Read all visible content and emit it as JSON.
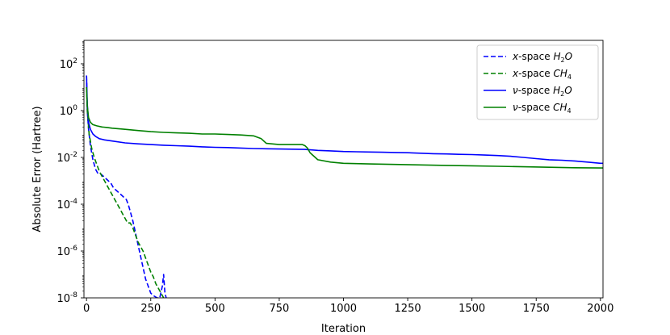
{
  "chart_data": {
    "type": "line",
    "xlabel": "Iteration",
    "ylabel": "Absolute Error (Hartree)",
    "xlim": [
      -10,
      2010
    ],
    "ylim_log10": [
      -8,
      3
    ],
    "y_scale": "log",
    "x_ticks": [
      0,
      250,
      500,
      750,
      1000,
      1250,
      1500,
      1750,
      2000
    ],
    "y_ticks_exp": [
      2,
      0,
      -2,
      -4,
      -6,
      -8
    ],
    "y_tick_base": "10",
    "legend": {
      "placement": "top-right",
      "entries": [
        {
          "prefix": "x",
          "text": "-space ",
          "sub_label": "H",
          "sub": "2",
          "tail": "O"
        },
        {
          "prefix": "x",
          "text": "-space ",
          "sub_label": "CH",
          "sub": "4",
          "tail": ""
        },
        {
          "prefix": "ν",
          "text": "-space ",
          "sub_label": "H",
          "sub": "2",
          "tail": "O"
        },
        {
          "prefix": "ν",
          "text": "-space ",
          "sub_label": "CH",
          "sub": "4",
          "tail": ""
        }
      ]
    },
    "series": [
      {
        "name": "x-space H2O",
        "color": "#0000ff",
        "dash": "dashed",
        "x": [
          0,
          3,
          8,
          15,
          25,
          35,
          45,
          55,
          65,
          75,
          85,
          95,
          105,
          115,
          125,
          135,
          145,
          155,
          162,
          170,
          180,
          190,
          200,
          210,
          220,
          230,
          240,
          250,
          260,
          275,
          285,
          295,
          300,
          305,
          310
        ],
        "y": [
          1.5,
          0.0,
          -0.8,
          -1.5,
          -2.1,
          -2.5,
          -2.7,
          -2.7,
          -2.8,
          -2.9,
          -3.0,
          -3.1,
          -3.3,
          -3.4,
          -3.5,
          -3.6,
          -3.7,
          -3.8,
          -4.0,
          -4.3,
          -4.7,
          -5.2,
          -5.7,
          -6.2,
          -6.7,
          -7.2,
          -7.5,
          -7.8,
          -7.9,
          -8.0,
          -8.0,
          -7.5,
          -7.0,
          -7.8,
          -8.0
        ]
      },
      {
        "name": "x-space CH4",
        "color": "#008000",
        "dash": "dashed",
        "x": [
          0,
          3,
          10,
          20,
          30,
          40,
          50,
          60,
          70,
          80,
          90,
          100,
          110,
          120,
          130,
          140,
          150,
          160,
          170,
          180,
          190,
          200,
          210,
          220,
          230,
          240,
          250,
          260,
          270,
          280,
          290,
          300
        ],
        "y": [
          1.0,
          0.0,
          -1.0,
          -1.6,
          -2.0,
          -2.3,
          -2.6,
          -2.8,
          -3.0,
          -3.2,
          -3.4,
          -3.6,
          -3.8,
          -4.0,
          -4.2,
          -4.4,
          -4.6,
          -4.8,
          -4.8,
          -5.0,
          -5.3,
          -5.6,
          -5.8,
          -6.0,
          -6.3,
          -6.6,
          -6.9,
          -7.1,
          -7.4,
          -7.6,
          -7.8,
          -8.0
        ]
      },
      {
        "name": "ν-space H2O",
        "color": "#0000ff",
        "dash": "solid",
        "x": [
          0,
          3,
          8,
          15,
          25,
          35,
          50,
          70,
          100,
          150,
          200,
          250,
          300,
          350,
          400,
          450,
          500,
          550,
          600,
          650,
          700,
          750,
          800,
          850,
          900,
          950,
          1000,
          1050,
          1100,
          1150,
          1200,
          1250,
          1300,
          1350,
          1400,
          1450,
          1500,
          1550,
          1600,
          1650,
          1700,
          1750,
          1800,
          1850,
          1900,
          1950,
          2000,
          2010
        ],
        "y": [
          1.5,
          0.3,
          -0.5,
          -0.8,
          -1.0,
          -1.1,
          -1.2,
          -1.25,
          -1.3,
          -1.38,
          -1.42,
          -1.45,
          -1.48,
          -1.5,
          -1.52,
          -1.55,
          -1.57,
          -1.58,
          -1.6,
          -1.62,
          -1.63,
          -1.64,
          -1.65,
          -1.66,
          -1.7,
          -1.72,
          -1.75,
          -1.76,
          -1.77,
          -1.78,
          -1.79,
          -1.8,
          -1.82,
          -1.84,
          -1.85,
          -1.87,
          -1.88,
          -1.9,
          -1.92,
          -1.95,
          -2.0,
          -2.05,
          -2.1,
          -2.12,
          -2.15,
          -2.2,
          -2.25,
          -2.25
        ]
      },
      {
        "name": "ν-space CH4",
        "color": "#008000",
        "dash": "solid",
        "x": [
          0,
          3,
          8,
          15,
          25,
          40,
          60,
          80,
          100,
          150,
          200,
          250,
          300,
          350,
          400,
          450,
          500,
          550,
          600,
          650,
          680,
          700,
          750,
          800,
          840,
          850,
          860,
          870,
          880,
          890,
          900,
          950,
          1000,
          1100,
          1200,
          1300,
          1400,
          1500,
          1600,
          1700,
          1800,
          1900,
          2000,
          2010
        ],
        "y": [
          1.0,
          0.2,
          -0.3,
          -0.5,
          -0.6,
          -0.65,
          -0.7,
          -0.72,
          -0.75,
          -0.8,
          -0.85,
          -0.9,
          -0.93,
          -0.95,
          -0.97,
          -1.0,
          -1.0,
          -1.02,
          -1.04,
          -1.08,
          -1.2,
          -1.4,
          -1.45,
          -1.45,
          -1.45,
          -1.5,
          -1.6,
          -1.8,
          -1.9,
          -2.0,
          -2.1,
          -2.2,
          -2.25,
          -2.28,
          -2.3,
          -2.32,
          -2.34,
          -2.36,
          -2.38,
          -2.4,
          -2.42,
          -2.44,
          -2.45,
          -2.45
        ]
      }
    ]
  }
}
